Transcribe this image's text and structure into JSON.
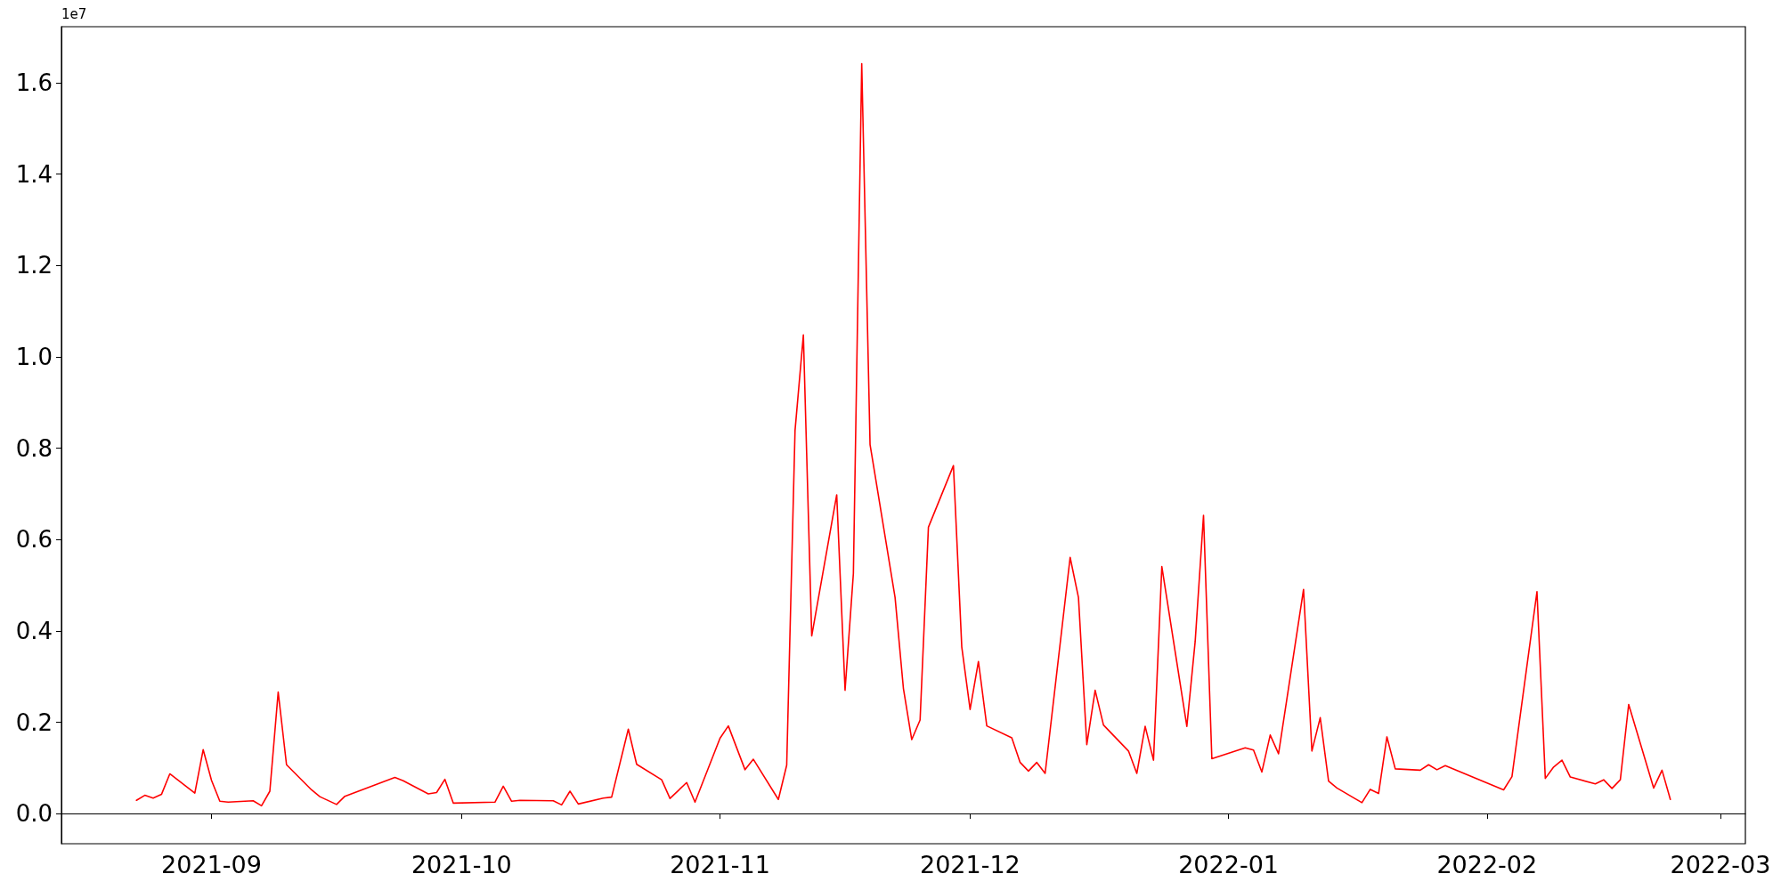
{
  "chart_data": {
    "type": "line",
    "x": [
      "2021-08-23",
      "2021-08-24",
      "2021-08-25",
      "2021-08-26",
      "2021-08-27",
      "2021-08-30",
      "2021-08-31",
      "2021-09-01",
      "2021-09-02",
      "2021-09-03",
      "2021-09-06",
      "2021-09-07",
      "2021-09-08",
      "2021-09-09",
      "2021-09-10",
      "2021-09-13",
      "2021-09-14",
      "2021-09-16",
      "2021-09-17",
      "2021-09-23",
      "2021-09-24",
      "2021-09-27",
      "2021-09-28",
      "2021-09-29",
      "2021-09-30",
      "2021-10-05",
      "2021-10-06",
      "2021-10-07",
      "2021-10-08",
      "2021-10-12",
      "2021-10-13",
      "2021-10-14",
      "2021-10-15",
      "2021-10-18",
      "2021-10-19",
      "2021-10-21",
      "2021-10-22",
      "2021-10-25",
      "2021-10-26",
      "2021-10-28",
      "2021-10-29",
      "2021-11-01",
      "2021-11-02",
      "2021-11-04",
      "2021-11-05",
      "2021-11-08",
      "2021-11-09",
      "2021-11-10",
      "2021-11-11",
      "2021-11-12",
      "2021-11-15",
      "2021-11-16",
      "2021-11-17",
      "2021-11-18",
      "2021-11-19",
      "2021-11-22",
      "2021-11-23",
      "2021-11-24",
      "2021-11-25",
      "2021-11-26",
      "2021-11-29",
      "2021-11-30",
      "2021-12-01",
      "2021-12-02",
      "2021-12-03",
      "2021-12-06",
      "2021-12-07",
      "2021-12-08",
      "2021-12-09",
      "2021-12-10",
      "2021-12-13",
      "2021-12-14",
      "2021-12-15",
      "2021-12-16",
      "2021-12-17",
      "2021-12-20",
      "2021-12-21",
      "2021-12-22",
      "2021-12-23",
      "2021-12-24",
      "2021-12-27",
      "2021-12-28",
      "2021-12-29",
      "2021-12-30",
      "2022-01-03",
      "2022-01-04",
      "2022-01-05",
      "2022-01-06",
      "2022-01-07",
      "2022-01-10",
      "2022-01-11",
      "2022-01-12",
      "2022-01-13",
      "2022-01-14",
      "2022-01-17",
      "2022-01-18",
      "2022-01-19",
      "2022-01-20",
      "2022-01-21",
      "2022-01-24",
      "2022-01-25",
      "2022-01-26",
      "2022-01-27",
      "2022-02-03",
      "2022-02-04",
      "2022-02-07",
      "2022-02-08",
      "2022-02-09",
      "2022-02-10",
      "2022-02-11",
      "2022-02-14",
      "2022-02-15",
      "2022-02-16",
      "2022-02-17",
      "2022-02-18",
      "2022-02-21",
      "2022-02-22",
      "2022-02-23"
    ],
    "series": [
      {
        "color": "#ff0000",
        "values": [
          0.029,
          0.04,
          0.034,
          0.042,
          0.087,
          0.045,
          0.14,
          0.073,
          0.027,
          0.025,
          0.028,
          0.017,
          0.049,
          0.266,
          0.107,
          0.052,
          0.037,
          0.02,
          0.038,
          0.079,
          0.072,
          0.043,
          0.046,
          0.075,
          0.023,
          0.025,
          0.06,
          0.027,
          0.029,
          0.028,
          0.019,
          0.049,
          0.021,
          0.034,
          0.036,
          0.185,
          0.108,
          0.074,
          0.033,
          0.068,
          0.025,
          0.165,
          0.192,
          0.096,
          0.119,
          0.031,
          0.106,
          0.839,
          1.048,
          0.389,
          0.698,
          0.27,
          0.526,
          1.642,
          0.808,
          0.473,
          0.274,
          0.162,
          0.205,
          0.627,
          0.762,
          0.365,
          0.228,
          0.333,
          0.192,
          0.166,
          0.112,
          0.093,
          0.112,
          0.088,
          0.561,
          0.473,
          0.151,
          0.27,
          0.194,
          0.137,
          0.088,
          0.191,
          0.117,
          0.541,
          0.191,
          0.377,
          0.653,
          0.12,
          0.144,
          0.139,
          0.091,
          0.172,
          0.131,
          0.491,
          0.137,
          0.21,
          0.071,
          0.056,
          0.024,
          0.053,
          0.044,
          0.168,
          0.098,
          0.095,
          0.107,
          0.096,
          0.105,
          0.052,
          0.081,
          0.486,
          0.077,
          0.102,
          0.117,
          0.08,
          0.065,
          0.074,
          0.055,
          0.074,
          0.239,
          0.056,
          0.095,
          0.031
        ]
      }
    ],
    "xlim": [
      "2021-08-14",
      "2022-03-04"
    ],
    "xticks": [
      {
        "value": "2021-09",
        "label": "2021-09"
      },
      {
        "value": "2021-10",
        "label": "2021-10"
      },
      {
        "value": "2021-11",
        "label": "2021-11"
      },
      {
        "value": "2021-12",
        "label": "2021-12"
      },
      {
        "value": "2022-01",
        "label": "2022-01"
      },
      {
        "value": "2022-02",
        "label": "2022-02"
      },
      {
        "value": "2022-03",
        "label": "2022-03"
      }
    ],
    "ylim": [
      -0.066,
      1.723
    ],
    "yticks": [
      {
        "value": 0,
        "label": "0.0"
      },
      0.2,
      0.4,
      0.6,
      0.8,
      {
        "value": 1,
        "label": "1.0"
      },
      1.2,
      1.4,
      1.6
    ],
    "annotations": [
      "1e7"
    ],
    "marker": "none",
    "line_style": "solid"
  }
}
